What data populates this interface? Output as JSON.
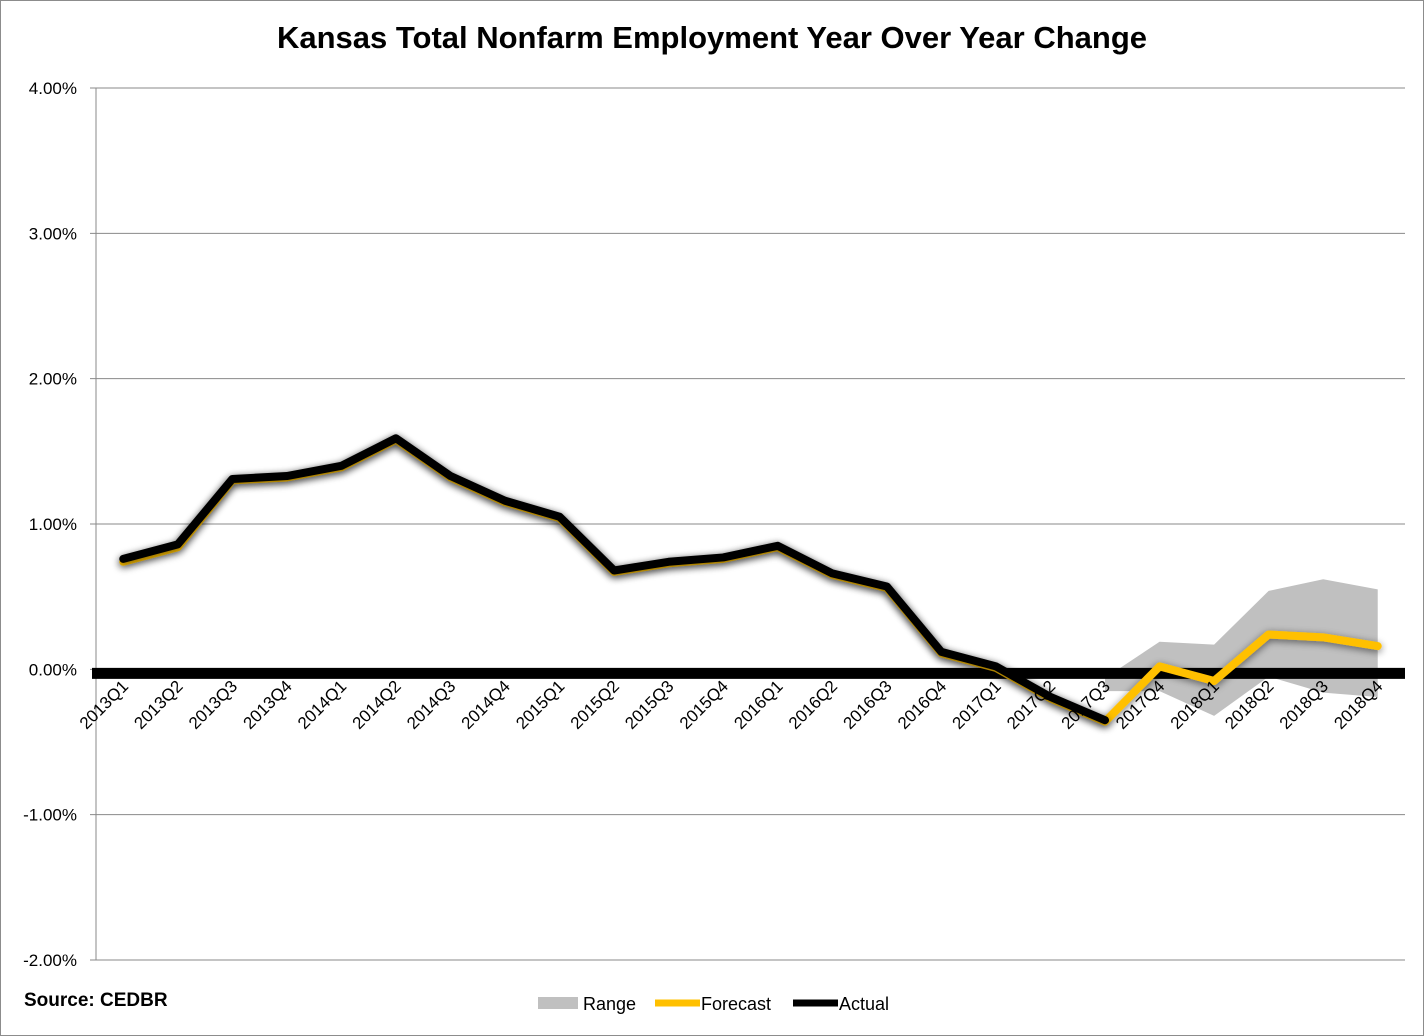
{
  "chart_data": {
    "type": "line",
    "title": "Kansas Total Nonfarm Employment Year Over Year Change",
    "source": "Source: CEDBR",
    "categories": [
      "2013Q1",
      "2013Q2",
      "2013Q3",
      "2013Q4",
      "2014Q1",
      "2014Q2",
      "2014Q3",
      "2014Q4",
      "2015Q1",
      "2015Q2",
      "2015Q3",
      "2015Q4",
      "2016Q1",
      "2016Q2",
      "2016Q3",
      "2016Q4",
      "2017Q1",
      "2017Q2",
      "2017Q3",
      "2017Q4",
      "2018Q1",
      "2018Q2",
      "2018Q3",
      "2018Q4"
    ],
    "ylim": [
      -2.0,
      4.0
    ],
    "yticks": [
      "-2.00%",
      "-1.00%",
      "0.00%",
      "1.00%",
      "2.00%",
      "3.00%",
      "4.00%"
    ],
    "grid": true,
    "legend_position": "bottom",
    "series": [
      {
        "name": "Actual",
        "color": "#000000",
        "values": [
          0.76,
          0.86,
          1.31,
          1.33,
          1.4,
          1.59,
          1.33,
          1.16,
          1.05,
          0.68,
          0.74,
          0.77,
          0.85,
          0.66,
          0.57,
          0.12,
          0.02,
          -0.19,
          -0.35,
          null,
          null,
          null,
          null,
          null
        ]
      },
      {
        "name": "Forecast",
        "color": "#FFC000",
        "values": [
          0.74,
          0.84,
          1.3,
          1.32,
          1.39,
          1.58,
          1.32,
          1.15,
          1.04,
          0.67,
          0.73,
          0.76,
          0.84,
          0.65,
          0.56,
          0.11,
          0.01,
          -0.2,
          -0.36,
          0.02,
          -0.08,
          0.24,
          0.22,
          0.16
        ]
      },
      {
        "name": "Range",
        "color": "#C0C0C0",
        "low": [
          null,
          null,
          null,
          null,
          null,
          null,
          null,
          null,
          null,
          null,
          null,
          null,
          null,
          null,
          null,
          null,
          null,
          null,
          -0.15,
          -0.15,
          -0.32,
          -0.05,
          -0.16,
          -0.19
        ],
        "high": [
          null,
          null,
          null,
          null,
          null,
          null,
          null,
          null,
          null,
          null,
          null,
          null,
          null,
          null,
          null,
          null,
          null,
          null,
          -0.06,
          0.19,
          0.17,
          0.54,
          0.62,
          0.55
        ]
      }
    ],
    "legend": [
      "Range",
      "Forecast",
      "Actual"
    ]
  }
}
